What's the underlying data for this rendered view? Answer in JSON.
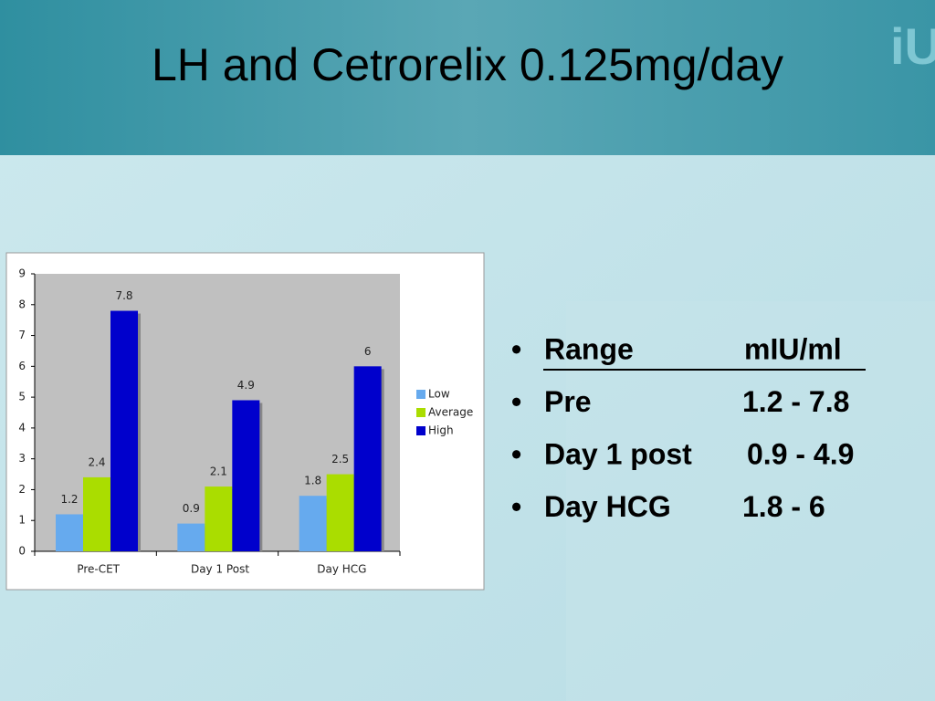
{
  "chart_data": {
    "type": "bar",
    "title": "LH and Cetrorelix 0.125mg/day",
    "categories": [
      "Pre-CET",
      "Day 1 Post",
      "Day HCG"
    ],
    "series": [
      {
        "name": "Low",
        "color": "#66aaee",
        "values": [
          1.2,
          0.9,
          1.8
        ]
      },
      {
        "name": "Average",
        "color": "#aadd00",
        "values": [
          2.4,
          2.1,
          2.5
        ]
      },
      {
        "name": "High",
        "color": "#0000cc",
        "values": [
          7.8,
          4.9,
          6
        ]
      }
    ],
    "ylim": [
      0,
      9
    ],
    "yticks": [
      0,
      1,
      2,
      3,
      4,
      5,
      6,
      7,
      8,
      9
    ],
    "legend": "right"
  },
  "bullets": [
    [
      "Range",
      "mIU/ml"
    ],
    [
      "Pre",
      "1.2 - 7.8"
    ],
    [
      "Day 1 post",
      "0.9 - 4.9"
    ],
    [
      "Day HCG",
      "1.8 - 6"
    ]
  ]
}
